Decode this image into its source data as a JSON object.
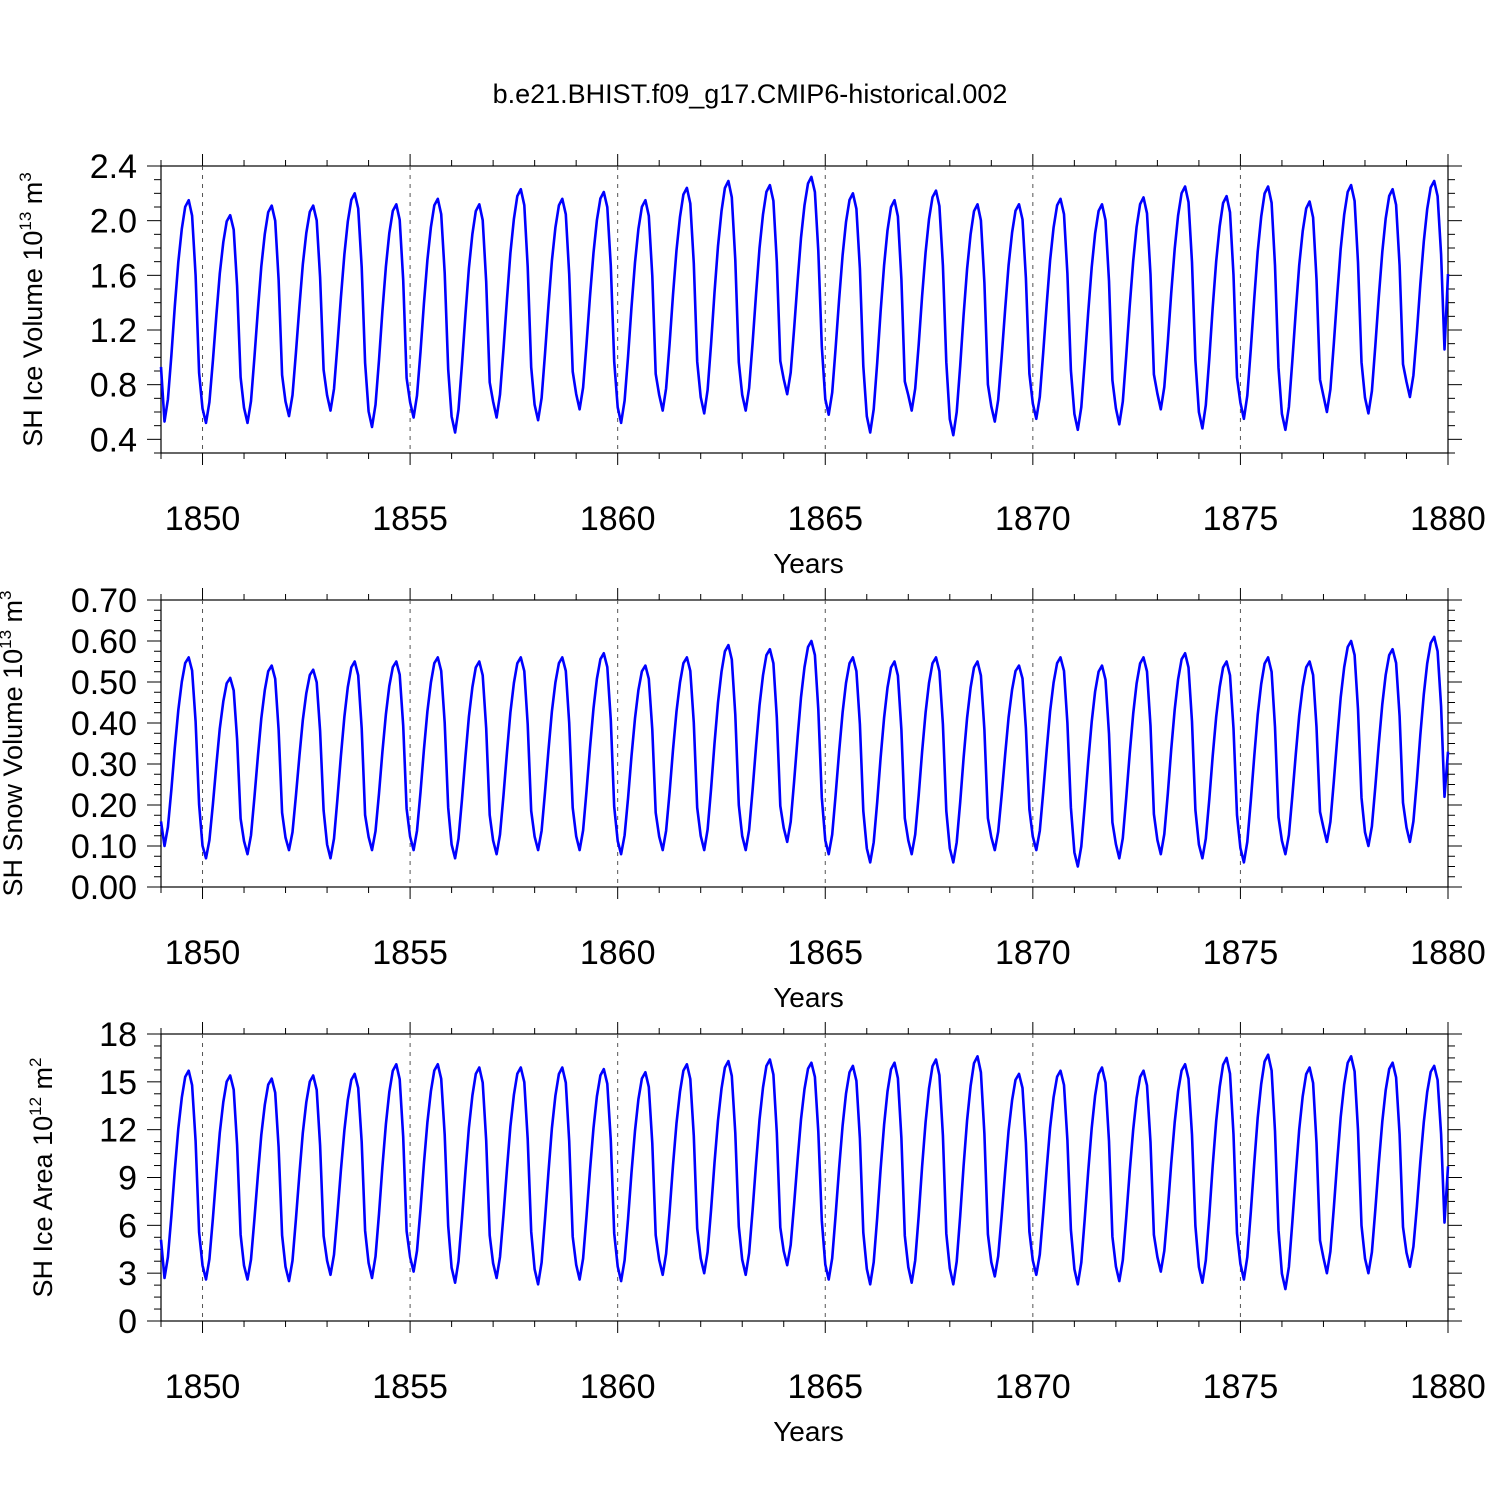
{
  "figure_title": "b.e21.BHIST.f09_g17.CMIP6-historical.002",
  "line_color": "#0000ff",
  "chart_data": [
    {
      "type": "line",
      "title": "",
      "xlabel": "Years",
      "ylabel": {
        "base": "SH Ice Volume 10",
        "exp": "13",
        "unit": " m",
        "unit_exp": "3"
      },
      "xlim": [
        1849.0,
        1880.0
      ],
      "ylim": [
        0.3,
        2.4
      ],
      "xticks": [
        1850,
        1855,
        1860,
        1865,
        1870,
        1875,
        1880
      ],
      "yticks": [
        0.4,
        0.8,
        1.2,
        1.6,
        2.0,
        2.4
      ],
      "ytick_labels": [
        "0.4",
        "0.8",
        "1.2",
        "1.6",
        "2.0",
        "2.4"
      ],
      "grid_x_dashed": [
        1850,
        1855,
        1860,
        1865,
        1870,
        1875
      ],
      "series": [
        {
          "start_year": 1849.0,
          "step": 0.0833333,
          "annual_min": [
            0.53,
            0.52,
            0.52,
            0.57,
            0.61,
            0.49,
            0.56,
            0.45,
            0.56,
            0.54,
            0.62,
            0.52,
            0.61,
            0.59,
            0.61,
            0.73,
            0.58,
            0.45,
            0.61,
            0.43,
            0.53,
            0.55,
            0.47,
            0.51,
            0.62,
            0.48,
            0.55,
            0.47,
            0.6,
            0.59,
            0.71
          ],
          "annual_max": [
            2.15,
            2.04,
            2.11,
            2.11,
            2.2,
            2.12,
            2.16,
            2.12,
            2.23,
            2.16,
            2.21,
            2.15,
            2.24,
            2.29,
            2.26,
            2.32,
            2.2,
            2.15,
            2.22,
            2.12,
            2.12,
            2.16,
            2.12,
            2.17,
            2.25,
            2.18,
            2.25,
            2.14,
            2.26,
            2.23,
            2.29
          ],
          "initial": 0.93,
          "final": 1.61
        }
      ]
    },
    {
      "type": "line",
      "title": "",
      "xlabel": "Years",
      "ylabel": {
        "base": "SH Snow Volume 10",
        "exp": "13",
        "unit": " m",
        "unit_exp": "3"
      },
      "xlim": [
        1849.0,
        1880.0
      ],
      "ylim": [
        0.0,
        0.7
      ],
      "xticks": [
        1850,
        1855,
        1860,
        1865,
        1870,
        1875,
        1880
      ],
      "yticks": [
        0.0,
        0.1,
        0.2,
        0.3,
        0.4,
        0.5,
        0.6,
        0.7
      ],
      "ytick_labels": [
        "0.00",
        "0.10",
        "0.20",
        "0.30",
        "0.40",
        "0.50",
        "0.60",
        "0.70"
      ],
      "grid_x_dashed": [
        1850,
        1855,
        1860,
        1865,
        1870,
        1875
      ],
      "series": [
        {
          "start_year": 1849.0,
          "step": 0.0833333,
          "annual_min": [
            0.1,
            0.07,
            0.08,
            0.09,
            0.07,
            0.09,
            0.09,
            0.07,
            0.08,
            0.09,
            0.09,
            0.08,
            0.09,
            0.09,
            0.09,
            0.11,
            0.08,
            0.06,
            0.08,
            0.06,
            0.09,
            0.09,
            0.05,
            0.07,
            0.08,
            0.07,
            0.06,
            0.08,
            0.11,
            0.1,
            0.11
          ],
          "annual_max": [
            0.56,
            0.51,
            0.54,
            0.53,
            0.55,
            0.55,
            0.56,
            0.55,
            0.56,
            0.56,
            0.57,
            0.54,
            0.56,
            0.59,
            0.58,
            0.6,
            0.56,
            0.55,
            0.56,
            0.55,
            0.54,
            0.56,
            0.54,
            0.56,
            0.57,
            0.55,
            0.56,
            0.55,
            0.6,
            0.58,
            0.61
          ],
          "initial": 0.16,
          "final": 0.33
        }
      ]
    },
    {
      "type": "line",
      "title": "",
      "xlabel": "Years",
      "ylabel": {
        "base": "SH Ice Area 10",
        "exp": "12",
        "unit": " m",
        "unit_exp": "2"
      },
      "xlim": [
        1849.0,
        1880.0
      ],
      "ylim": [
        0,
        18
      ],
      "xticks": [
        1850,
        1855,
        1860,
        1865,
        1870,
        1875,
        1880
      ],
      "yticks": [
        0,
        3,
        6,
        9,
        12,
        15,
        18
      ],
      "ytick_labels": [
        "0",
        "3",
        "6",
        "9",
        "12",
        "15",
        "18"
      ],
      "grid_x_dashed": [
        1850,
        1855,
        1860,
        1865,
        1870,
        1875
      ],
      "series": [
        {
          "start_year": 1849.0,
          "step": 0.0833333,
          "annual_min": [
            2.7,
            2.6,
            2.6,
            2.5,
            2.9,
            2.7,
            3.1,
            2.4,
            2.7,
            2.3,
            2.6,
            2.5,
            2.9,
            3.0,
            2.9,
            3.5,
            2.6,
            2.3,
            2.4,
            2.3,
            2.8,
            2.9,
            2.3,
            2.5,
            3.1,
            2.4,
            2.6,
            2.0,
            3.0,
            3.0,
            3.4
          ],
          "annual_max": [
            15.7,
            15.4,
            15.2,
            15.4,
            15.5,
            16.1,
            16.1,
            15.9,
            15.9,
            15.9,
            15.8,
            15.6,
            16.1,
            16.3,
            16.4,
            16.2,
            16.0,
            16.2,
            16.4,
            16.6,
            15.5,
            15.7,
            15.9,
            15.7,
            16.1,
            16.5,
            16.7,
            15.9,
            16.6,
            16.2,
            16.0
          ],
          "initial": 5.1,
          "final": 9.7
        }
      ]
    }
  ]
}
